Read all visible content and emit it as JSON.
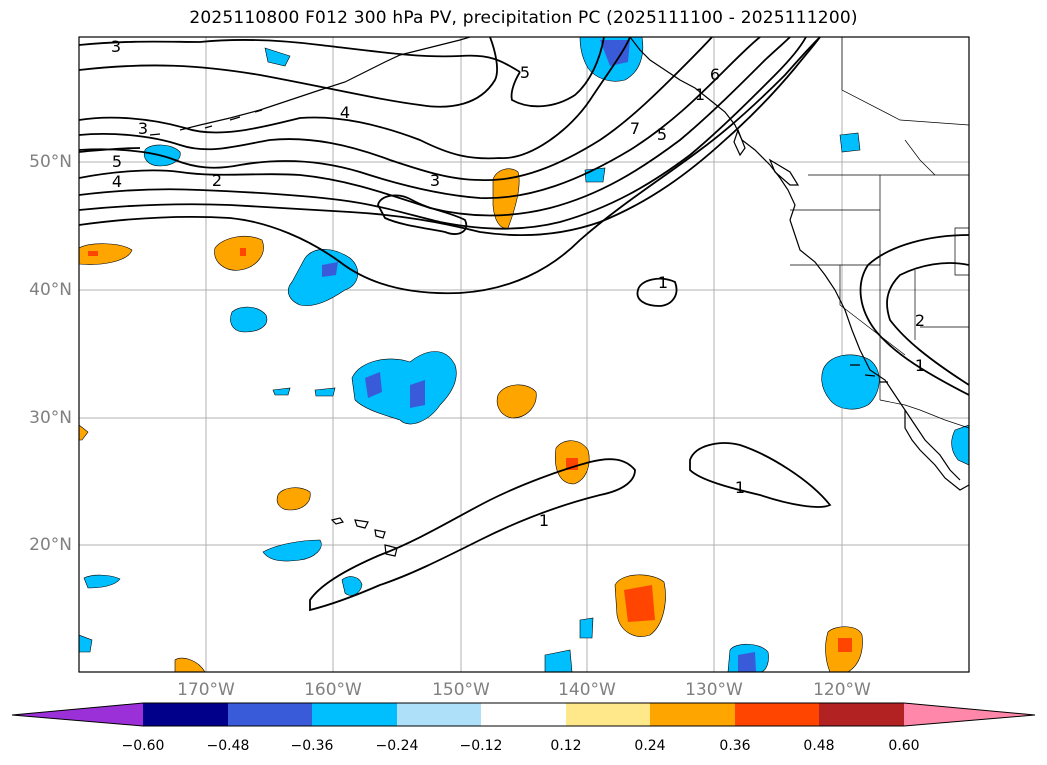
{
  "title": "2025110800 F012 300 hPa PV, precipitation PC (2025111100 - 2025111200)",
  "map": {
    "lat_labels": [
      "50°N",
      "40°N",
      "30°N",
      "20°N"
    ],
    "lon_labels": [
      "170°W",
      "160°W",
      "150°W",
      "140°W",
      "130°W",
      "120°W"
    ],
    "contour_labels": [
      "3",
      "3",
      "5",
      "4",
      "2",
      "4",
      "3",
      "5",
      "7",
      "5",
      "6",
      "1",
      "1",
      "1",
      "1",
      "2",
      "1"
    ]
  },
  "colorbar": {
    "ticks": [
      "−0.60",
      "−0.48",
      "−0.36",
      "−0.24",
      "−0.12",
      "0.12",
      "0.24",
      "0.36",
      "0.48",
      "0.60"
    ],
    "colors": [
      "#9b30d9",
      "#00008b",
      "#3a5bd9",
      "#00bfff",
      "#aee0f9",
      "#ffffff",
      "#ffe88a",
      "#ffa500",
      "#ff4500",
      "#b22222",
      "#ff88aa"
    ]
  }
}
